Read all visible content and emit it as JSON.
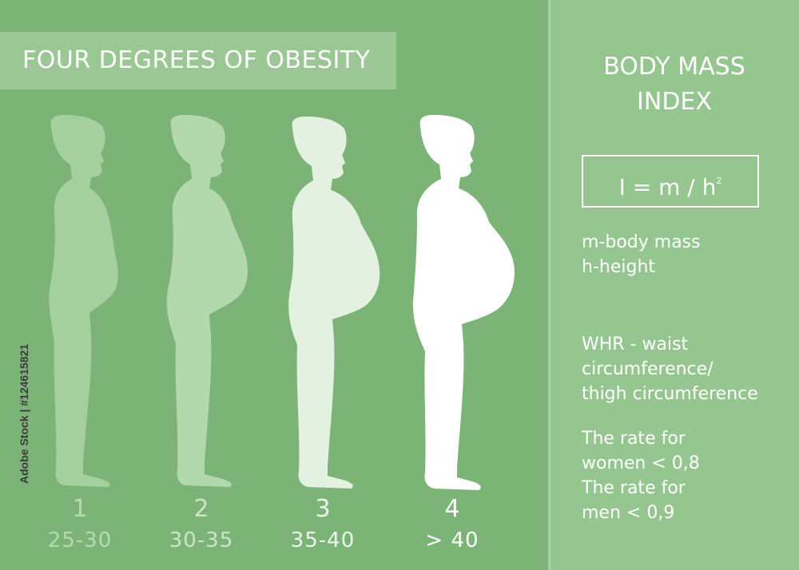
{
  "title": "FOUR DEGREES OF OBESITY",
  "figures": [
    {
      "number": "1",
      "range": "25-30"
    },
    {
      "number": "2",
      "range": "30-35"
    },
    {
      "number": "3",
      "range": "35-40"
    },
    {
      "number": "4",
      "range": "> 40"
    }
  ],
  "bmi": {
    "title_line1": "BODY MASS",
    "title_line2": "INDEX",
    "formula_main": "I = m / h",
    "formula_sup": "2",
    "def_mass": "m-body mass",
    "def_height": "h-height"
  },
  "whr": {
    "line1": "WHR - waist",
    "line2": "circumference/",
    "line3": "thigh circumference"
  },
  "rates": {
    "line1": "The rate for",
    "line2": "women < 0,8",
    "line3": "The rate for",
    "line4": "men < 0,9"
  },
  "watermark": "Adobe Stock | #124615821",
  "colors": {
    "left_bg": "#7cb478",
    "right_bg": "#96c690",
    "title_band": "#9ac794"
  }
}
